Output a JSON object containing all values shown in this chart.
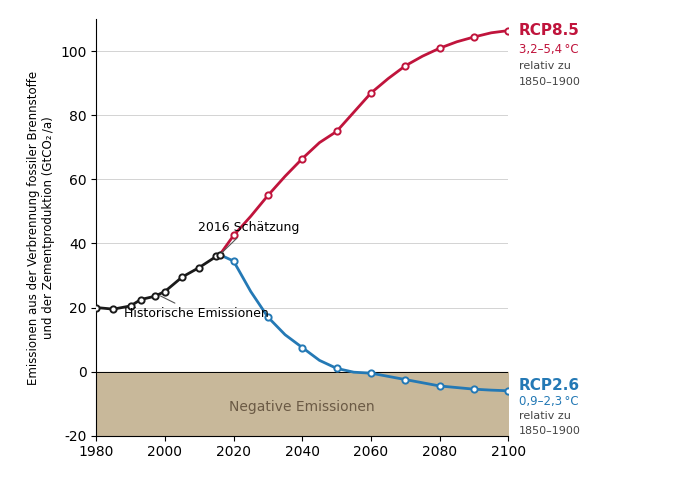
{
  "ylabel": "Emissionen aus der Verbrennung fossiler Brennstoffe\nund der Zementproduktion (GtCO₂ /a)",
  "xlim": [
    1980,
    2100
  ],
  "ylim": [
    -20,
    110
  ],
  "yticks": [
    -20,
    0,
    20,
    40,
    60,
    80,
    100
  ],
  "xticks": [
    1980,
    2000,
    2020,
    2040,
    2060,
    2080,
    2100
  ],
  "historical_x": [
    1980,
    1985,
    1990,
    1993,
    1997,
    2000,
    2005,
    2010,
    2015,
    2016
  ],
  "historical_y": [
    20.0,
    19.5,
    20.5,
    22.5,
    23.5,
    25.0,
    29.5,
    32.5,
    36.0,
    36.5
  ],
  "rcp85_x": [
    2020,
    2030,
    2040,
    2050,
    2060,
    2070,
    2080,
    2090,
    2100
  ],
  "rcp85_y": [
    42.5,
    55.0,
    66.5,
    75.0,
    87.0,
    95.5,
    101.0,
    104.5,
    106.5
  ],
  "rcp26_x": [
    2020,
    2030,
    2040,
    2050,
    2060,
    2070,
    2080,
    2090,
    2100
  ],
  "rcp26_y": [
    34.5,
    17.0,
    7.5,
    1.0,
    -0.5,
    -2.5,
    -4.5,
    -5.5,
    -6.0
  ],
  "rcp85_full_x": [
    2016,
    2020,
    2025,
    2030,
    2035,
    2040,
    2045,
    2050,
    2055,
    2060,
    2065,
    2070,
    2075,
    2080,
    2085,
    2090,
    2095,
    2100
  ],
  "rcp85_full_y": [
    36.5,
    42.5,
    48.5,
    55.0,
    61.0,
    66.5,
    71.5,
    75.0,
    81.0,
    87.0,
    91.5,
    95.5,
    98.5,
    101.0,
    103.0,
    104.5,
    105.8,
    106.5
  ],
  "rcp26_full_x": [
    2016,
    2020,
    2025,
    2030,
    2035,
    2040,
    2045,
    2050,
    2055,
    2060,
    2065,
    2070,
    2075,
    2080,
    2085,
    2090,
    2095,
    2100
  ],
  "rcp26_full_y": [
    36.5,
    34.5,
    25.0,
    17.0,
    11.5,
    7.5,
    3.5,
    1.0,
    -0.2,
    -0.5,
    -1.5,
    -2.5,
    -3.5,
    -4.5,
    -5.0,
    -5.5,
    -5.8,
    -6.0
  ],
  "negative_fill_color": "#c8b89a",
  "hist_color": "#1a1a1a",
  "rcp85_color": "#c0143c",
  "rcp26_color": "#2479b5",
  "bg_color": "#ffffff",
  "grid_color": "#cccccc",
  "annotation_fontsize": 9,
  "label_fontsize": 10,
  "tick_fontsize": 10,
  "ylabel_fontsize": 8.5
}
